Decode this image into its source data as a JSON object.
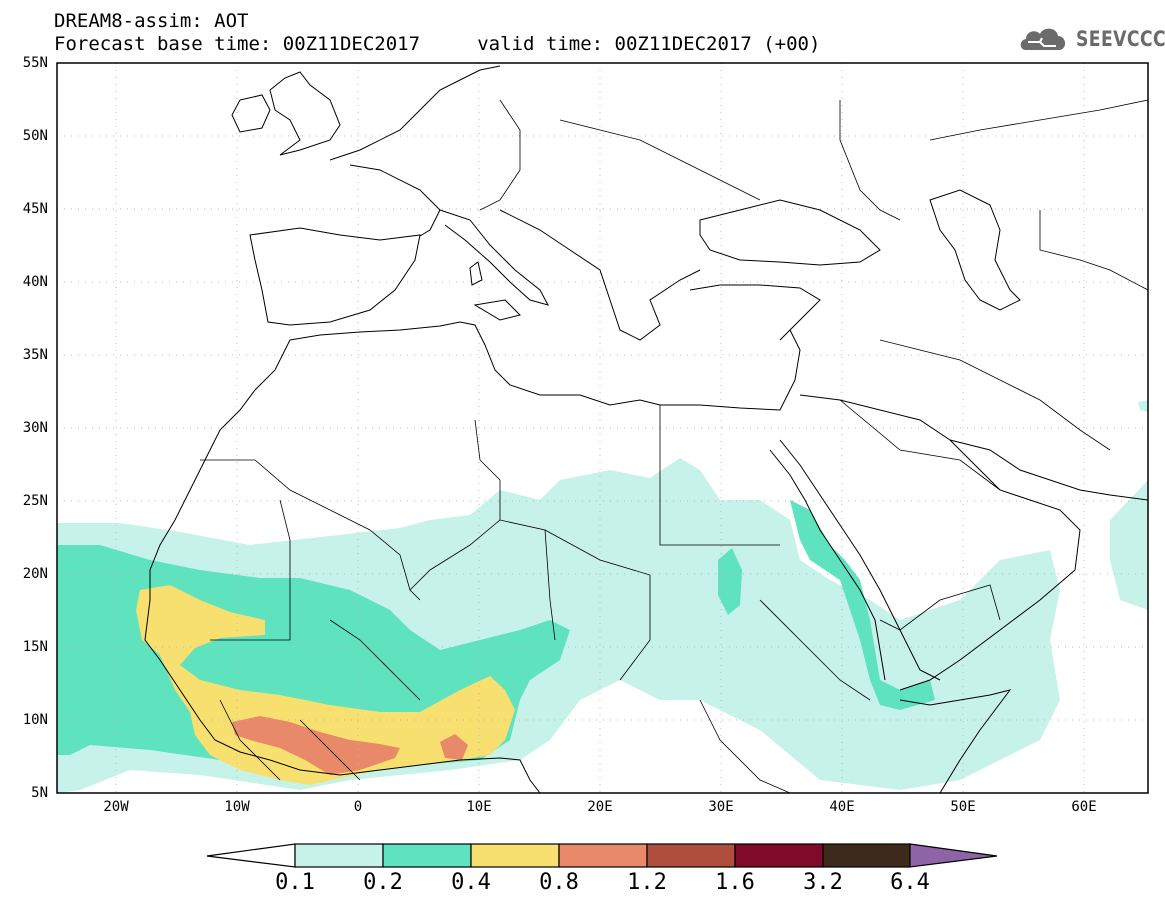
{
  "header": {
    "title_line1": "DREAM8-assim: AOT",
    "title_line2": "Forecast base time: 00Z11DEC2017     valid time: 00Z11DEC2017 (+00)",
    "logo_text": "SEEVCCC"
  },
  "map": {
    "lat_labels": [
      "55N",
      "50N",
      "45N",
      "40N",
      "35N",
      "30N",
      "25N",
      "20N",
      "15N",
      "10N",
      "5N"
    ],
    "lon_labels": [
      "20W",
      "10W",
      "0",
      "10E",
      "20E",
      "30E",
      "40E",
      "50E",
      "60E"
    ],
    "colorbar": {
      "labels": [
        "0.1",
        "0.2",
        "0.4",
        "0.8",
        "1.2",
        "1.6",
        "3.2",
        "6.4"
      ],
      "colors": [
        "#ffffff",
        "#c6f2ea",
        "#5fe2be",
        "#f7e070",
        "#e8896a",
        "#b04e3e",
        "#7f0a2a",
        "#3e2a1a",
        "#8e64a6"
      ]
    }
  }
}
